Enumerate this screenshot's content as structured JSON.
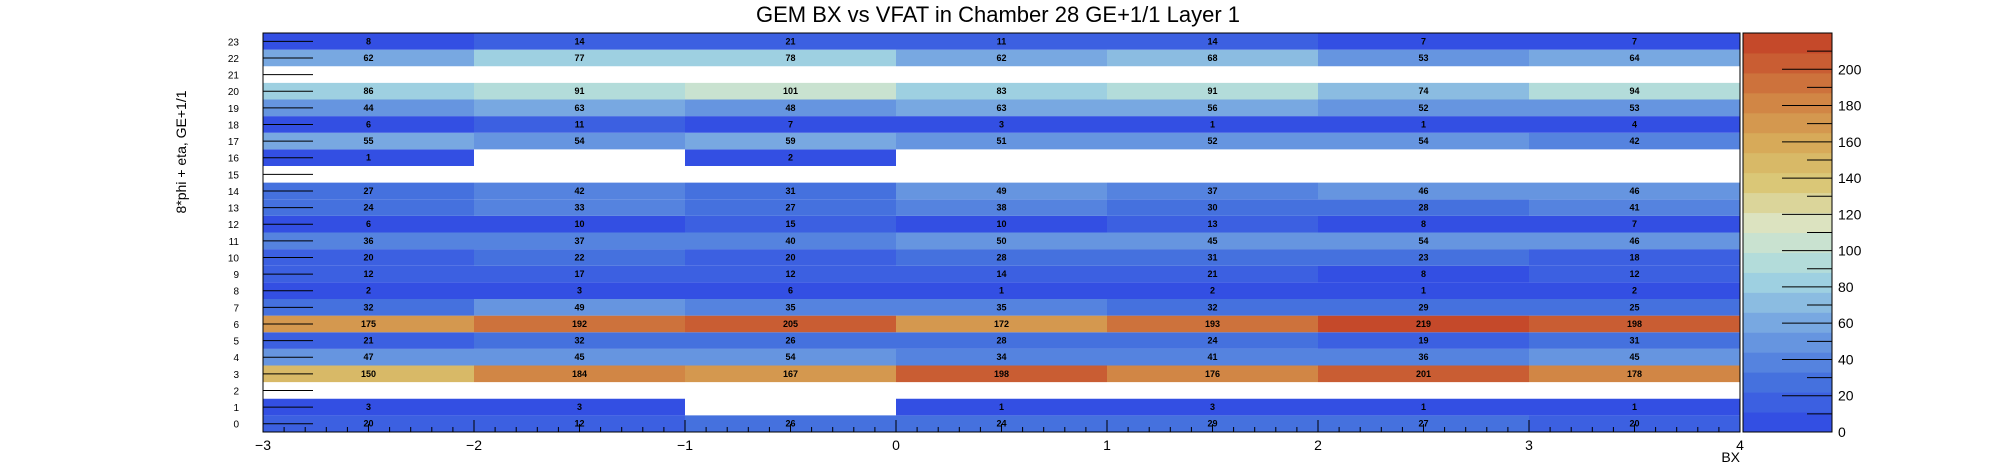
{
  "chart_data": {
    "type": "heatmap",
    "title": "GEM BX vs VFAT in Chamber 28 GE+1/1 Layer 1",
    "xlabel": "BX",
    "ylabel": "8*phi + eta, GE+1/1",
    "xlim": [
      -3,
      4
    ],
    "ylim": [
      0,
      24
    ],
    "x_bins": [
      -2.5,
      -1.5,
      -0.5,
      0.5,
      1.5,
      2.5,
      3.5
    ],
    "x_tick_labels": [
      "−3",
      "−2",
      "−1",
      "0",
      "1",
      "2",
      "3",
      "4"
    ],
    "y_tick_labels": [
      "0",
      "1",
      "2",
      "3",
      "4",
      "5",
      "6",
      "7",
      "8",
      "9",
      "10",
      "11",
      "12",
      "13",
      "14",
      "15",
      "16",
      "17",
      "18",
      "19",
      "20",
      "21",
      "22",
      "23"
    ],
    "z_range": [
      0,
      220
    ],
    "z_tick_labels": [
      "0",
      "20",
      "40",
      "60",
      "80",
      "100",
      "120",
      "140",
      "160",
      "180",
      "200"
    ],
    "grid": false,
    "colorbar": "right",
    "cells": [
      [
        20,
        12,
        26,
        24,
        29,
        27,
        20
      ],
      [
        3,
        3,
        null,
        1,
        3,
        1,
        1
      ],
      [
        null,
        null,
        null,
        null,
        null,
        null,
        null
      ],
      [
        150,
        184,
        167,
        198,
        176,
        201,
        178
      ],
      [
        47,
        45,
        54,
        34,
        41,
        36,
        45
      ],
      [
        21,
        32,
        26,
        28,
        24,
        19,
        31
      ],
      [
        175,
        192,
        205,
        172,
        193,
        219,
        198
      ],
      [
        32,
        49,
        35,
        35,
        32,
        29,
        25
      ],
      [
        2,
        3,
        6,
        1,
        2,
        1,
        2
      ],
      [
        12,
        17,
        12,
        14,
        21,
        8,
        12
      ],
      [
        20,
        22,
        20,
        28,
        31,
        23,
        18
      ],
      [
        36,
        37,
        40,
        50,
        45,
        54,
        46
      ],
      [
        6,
        10,
        15,
        10,
        13,
        8,
        7
      ],
      [
        24,
        33,
        27,
        38,
        30,
        28,
        41
      ],
      [
        27,
        42,
        31,
        49,
        37,
        46,
        46
      ],
      [
        null,
        null,
        null,
        null,
        null,
        null,
        null
      ],
      [
        1,
        null,
        2,
        null,
        null,
        null,
        null
      ],
      [
        55,
        54,
        59,
        51,
        52,
        54,
        42
      ],
      [
        6,
        11,
        7,
        3,
        1,
        1,
        4
      ],
      [
        44,
        63,
        48,
        63,
        56,
        52,
        53
      ],
      [
        86,
        91,
        101,
        83,
        91,
        74,
        94
      ],
      [
        null,
        null,
        null,
        null,
        null,
        null,
        null
      ],
      [
        62,
        77,
        78,
        62,
        68,
        53,
        64
      ],
      [
        8,
        14,
        21,
        11,
        14,
        7,
        7
      ]
    ]
  }
}
